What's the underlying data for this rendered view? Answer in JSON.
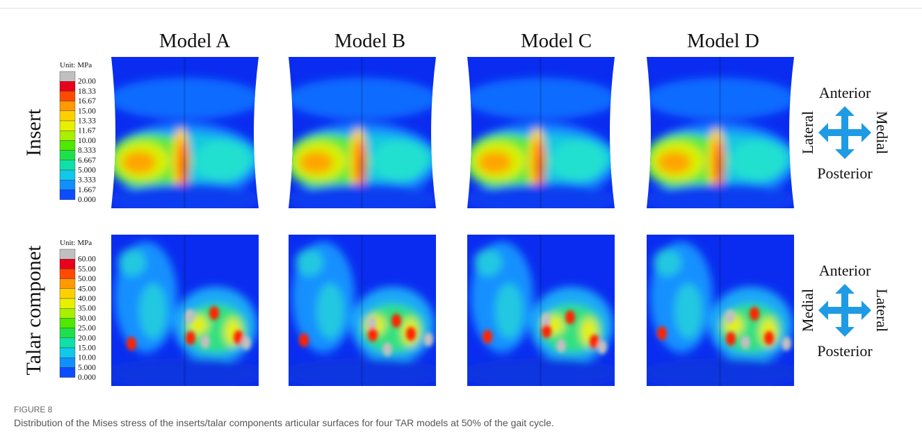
{
  "columns": [
    "Model A",
    "Model B",
    "Model C",
    "Model D"
  ],
  "rows": [
    {
      "label": "Insert",
      "legend": {
        "title": "Unit: MPa",
        "values": [
          "20.00",
          "18.33",
          "16.67",
          "15.00",
          "13.33",
          "11.67",
          "10.00",
          "8.333",
          "6.667",
          "5.000",
          "3.333",
          "1.667",
          "0.000"
        ]
      },
      "orientation": {
        "top": "Anterior",
        "bottom": "Posterior",
        "left": "Lateral",
        "right": "Medial"
      }
    },
    {
      "label": "Talar componet",
      "legend": {
        "title": "Unit: MPa",
        "values": [
          "60.00",
          "55.00",
          "50.00",
          "45.00",
          "40.00",
          "35.00",
          "30.00",
          "25.00",
          "20.00",
          "15.00",
          "10.00",
          "5.000",
          "0.000"
        ]
      },
      "orientation": {
        "top": "Anterior",
        "bottom": "Posterior",
        "left": "Medial",
        "right": "Lateral"
      }
    }
  ],
  "figure": {
    "label": "FIGURE 8",
    "caption": "Distribution of the Mises stress of the inserts/talar components articular surfaces for four TAR models at 50% of the gait cycle."
  }
}
